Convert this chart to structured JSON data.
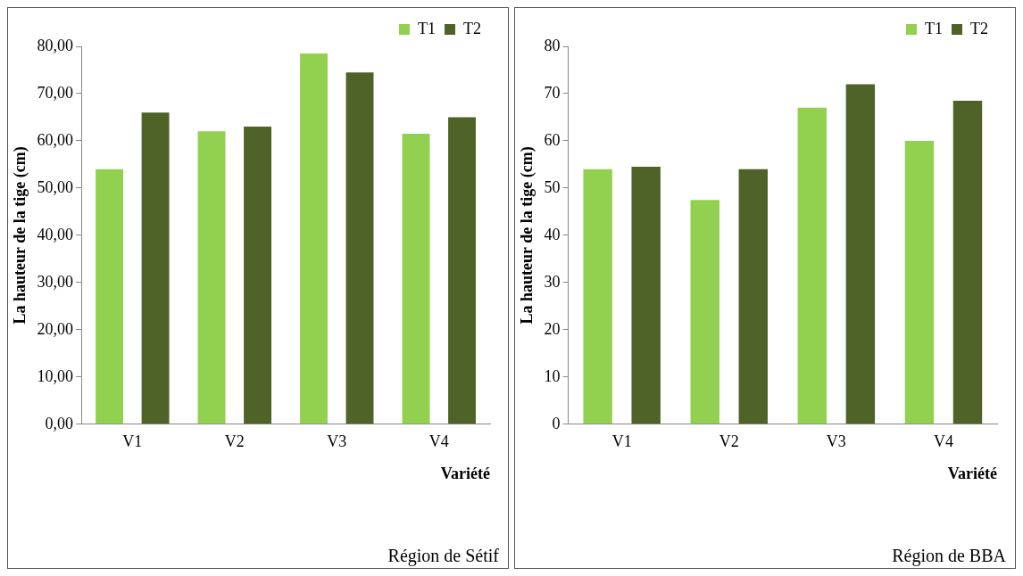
{
  "chart_data": [
    {
      "type": "bar",
      "categories": [
        "V1",
        "V2",
        "V3",
        "V4"
      ],
      "xlabel": "Variété",
      "ylabel": "La hauteur de la tige (cm)",
      "ylim": [
        0,
        80
      ],
      "yticks": [
        {
          "value": 0,
          "label": "0,00"
        },
        {
          "value": 10,
          "label": "10,00"
        },
        {
          "value": 20,
          "label": "20,00"
        },
        {
          "value": 30,
          "label": "30,00"
        },
        {
          "value": 40,
          "label": "40,00"
        },
        {
          "value": 50,
          "label": "50,00"
        },
        {
          "value": 60,
          "label": "60,00"
        },
        {
          "value": 70,
          "label": "70,00"
        },
        {
          "value": 80,
          "label": "80,00"
        }
      ],
      "legend": "top right",
      "grid": false,
      "annotations": [
        "Région de Sétif"
      ],
      "series": [
        {
          "name": "T1",
          "color": "#92d050",
          "values": [
            54,
            62,
            78.5,
            61.5
          ]
        },
        {
          "name": "T2",
          "color": "#4f6228",
          "values": [
            66,
            63,
            74.5,
            65
          ]
        }
      ]
    },
    {
      "type": "bar",
      "categories": [
        "V1",
        "V2",
        "V3",
        "V4"
      ],
      "xlabel": "Variété",
      "ylabel": "La hauteur de la tige (cm)",
      "ylim": [
        0,
        80
      ],
      "yticks": [
        0,
        10,
        20,
        30,
        40,
        50,
        60,
        70,
        80
      ],
      "legend": "top right",
      "grid": false,
      "annotations": [
        "Région de BBA"
      ],
      "series": [
        {
          "name": "T1",
          "color": "#92d050",
          "values": [
            54,
            47.5,
            67,
            60
          ]
        },
        {
          "name": "T2",
          "color": "#4f6228",
          "values": [
            54.5,
            54,
            72,
            68.5
          ]
        }
      ]
    }
  ]
}
